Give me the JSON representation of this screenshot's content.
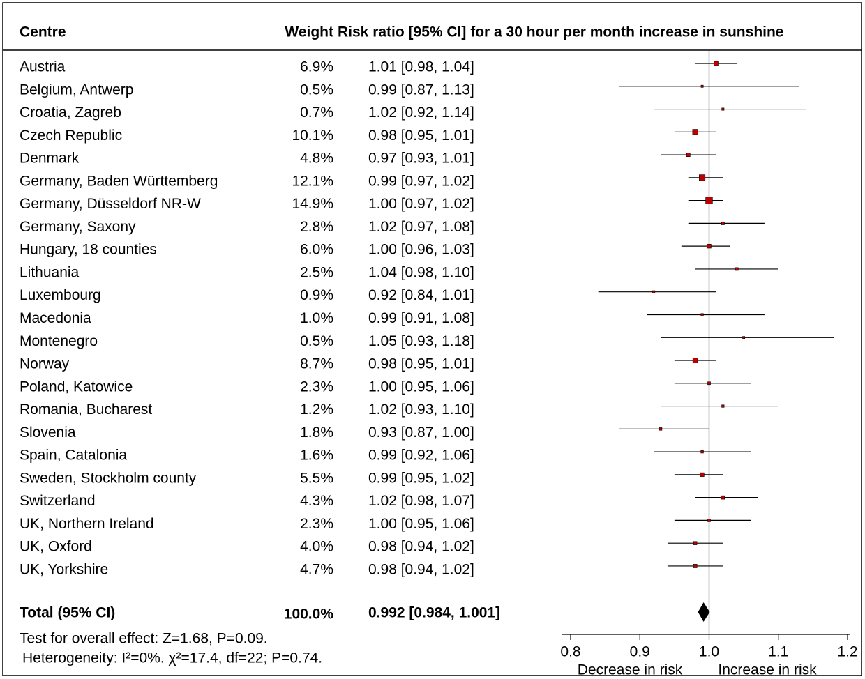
{
  "chart_data": {
    "type": "forest",
    "headers": {
      "centre": "Centre",
      "weight": "Weight",
      "effect": "Risk ratio [95% CI] for a 30 hour per month increase in sunshine"
    },
    "categories": [
      "Austria",
      "Belgium, Antwerp",
      "Croatia, Zagreb",
      "Czech Republic",
      "Denmark",
      "Germany, Baden Württemberg",
      "Germany, Düsseldorf NR-W",
      "Germany, Saxony",
      "Hungary, 18 counties",
      "Lithuania",
      "Luxembourg",
      "Macedonia",
      "Montenegro",
      "Norway",
      "Poland, Katowice",
      "Romania, Bucharest",
      "Slovenia",
      "Spain, Catalonia",
      "Sweden, Stockholm county",
      "Switzerland",
      "UK, Northern Ireland",
      "UK, Oxford",
      "UK, Yorkshire"
    ],
    "weights": [
      6.9,
      0.5,
      0.7,
      10.1,
      4.8,
      12.1,
      14.9,
      2.8,
      6.0,
      2.5,
      0.9,
      1.0,
      0.5,
      8.7,
      2.3,
      1.2,
      1.8,
      1.6,
      5.5,
      4.3,
      2.3,
      4.0,
      4.7
    ],
    "weight_labels": [
      "6.9%",
      "0.5%",
      "0.7%",
      "10.1%",
      "4.8%",
      "12.1%",
      "14.9%",
      "2.8%",
      "6.0%",
      "2.5%",
      "0.9%",
      "1.0%",
      "0.5%",
      "8.7%",
      "2.3%",
      "1.2%",
      "1.8%",
      "1.6%",
      "5.5%",
      "4.3%",
      "2.3%",
      "4.0%",
      "4.7%"
    ],
    "values": [
      1.01,
      0.99,
      1.02,
      0.98,
      0.97,
      0.99,
      1.0,
      1.02,
      1.0,
      1.04,
      0.92,
      0.99,
      1.05,
      0.98,
      1.0,
      1.02,
      0.93,
      0.99,
      0.99,
      1.02,
      1.0,
      0.98,
      0.98
    ],
    "ci_low": [
      0.98,
      0.87,
      0.92,
      0.95,
      0.93,
      0.97,
      0.97,
      0.97,
      0.96,
      0.98,
      0.84,
      0.91,
      0.93,
      0.95,
      0.95,
      0.93,
      0.87,
      0.92,
      0.95,
      0.98,
      0.95,
      0.94,
      0.94
    ],
    "ci_high": [
      1.04,
      1.13,
      1.14,
      1.01,
      1.01,
      1.02,
      1.02,
      1.08,
      1.03,
      1.1,
      1.01,
      1.08,
      1.18,
      1.01,
      1.06,
      1.1,
      1.0,
      1.06,
      1.02,
      1.07,
      1.06,
      1.02,
      1.02
    ],
    "value_labels": [
      "1.01 [0.98, 1.04]",
      "0.99 [0.87, 1.13]",
      "1.02 [0.92, 1.14]",
      "0.98 [0.95, 1.01]",
      "0.97 [0.93, 1.01]",
      "0.99 [0.97, 1.02]",
      "1.00 [0.97, 1.02]",
      "1.02 [0.97, 1.08]",
      "1.00 [0.96, 1.03]",
      "1.04 [0.98, 1.10]",
      "0.92 [0.84, 1.01]",
      "0.99 [0.91, 1.08]",
      "1.05 [0.93, 1.18]",
      "0.98 [0.95, 1.01]",
      "1.00 [0.95, 1.06]",
      "1.02 [0.93, 1.10]",
      "0.93 [0.87, 1.00]",
      "0.99 [0.92, 1.06]",
      "0.99 [0.95, 1.02]",
      "1.02 [0.98, 1.07]",
      "1.00 [0.95, 1.06]",
      "0.98 [0.94, 1.02]",
      "0.98 [0.94, 1.02]"
    ],
    "total": {
      "label": "Total (95% CI)",
      "weight": 100.0,
      "weight_label": "100.0%",
      "value": 0.992,
      "ci_low": 0.984,
      "ci_high": 1.001,
      "value_label": "0.992 [0.984, 1.001]"
    },
    "footnotes": [
      "Test for overall effect: Z=1.68, P=0.09.",
      "Heterogeneity: I²=0%.  χ²=17.4, df=22; P=0.74."
    ],
    "xlim": [
      0.8,
      1.2
    ],
    "xticks": [
      0.8,
      0.9,
      {
        "value": 1.0,
        "label": "1.0"
      },
      1.1,
      1.2
    ],
    "reference_line": 1,
    "axis_labels": [
      "Decrease in risk",
      "Increase in risk"
    ],
    "color": "#c00000"
  }
}
